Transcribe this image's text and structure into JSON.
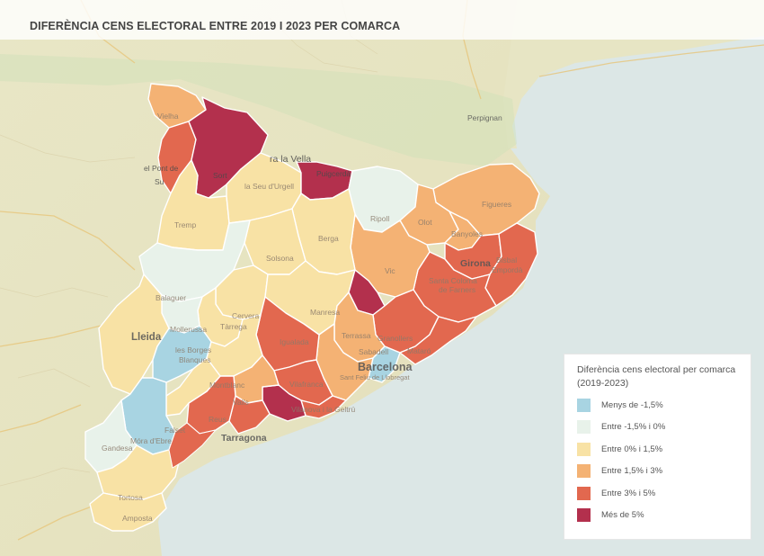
{
  "title": "DIFERÈNCIA CENS ELECTORAL ENTRE 2019 I 2023 PER COMARCA",
  "colors": {
    "menys": "#a8d4e2",
    "entre_neg": "#e8f2ea",
    "entre_0_15": "#f8e2a5",
    "entre_15_3": "#f4b274",
    "entre_3_5": "#e2684f",
    "mes_5": "#b3304d"
  },
  "legend": {
    "title": "Diferència cens electoral per comarca (2019-2023)",
    "items": [
      {
        "label": "Menys de -1,5%",
        "color": "#a8d4e2"
      },
      {
        "label": "Entre -1,5% i 0%",
        "color": "#e8f2ea"
      },
      {
        "label": "Entre 0% i 1,5%",
        "color": "#f8e2a5"
      },
      {
        "label": "Entre 1,5% i 3%",
        "color": "#f4b274"
      },
      {
        "label": "Entre 3% i 5%",
        "color": "#e2684f"
      },
      {
        "label": "Més de 5%",
        "color": "#b3304d"
      }
    ]
  },
  "map_labels": {
    "vielha": "Vielha",
    "andorra": "ra la Vella",
    "pont_suert": "el Pont de",
    "suert": "Su",
    "sort": "Sort",
    "puigcerda": "Puigcerdà",
    "perpignan": "Perpignan",
    "seu": "la Seu d'Urgell",
    "tremp": "Tremp",
    "ripoll": "Ripoll",
    "olot": "Olot",
    "figueres": "Figueres",
    "banyoles": "Banyoles",
    "berga": "Berga",
    "solsona": "Solsona",
    "girona": "Girona",
    "bisbal_1": "Bisbal",
    "bisbal_2": "Empordà",
    "vic": "Vic",
    "santa_coloma_1": "Santa Coloma",
    "santa_coloma_2": "de Farners",
    "balaguer": "Balaguer",
    "cervera": "Cervera",
    "manresa": "Manresa",
    "mollerussa": "Mollerussa",
    "les_borges_1": "les Borges",
    "les_borges_2": "Blanques",
    "lleida": "Lleida",
    "igualada": "Igualada",
    "granollers": "Granollers",
    "terrassa": "Terrassa",
    "sabadell": "Sabadell",
    "mataro": "Mataró",
    "barcelona": "Barcelona",
    "tarrega": "Tàrrega",
    "montblanc": "Montblanc",
    "valls": "Valls",
    "vilafranca": "Vilafranca",
    "sant_feliu": "Sant Feliu de Llobregat",
    "reus": "Reus",
    "falset": "Falset",
    "tarragona": "Tarragona",
    "vilanova": "Vilanova i la Geltrú",
    "gandesa": "Gandesa",
    "mora": "Móra d'Ebre",
    "tortosa": "Tortosa",
    "amposta": "Amposta"
  }
}
